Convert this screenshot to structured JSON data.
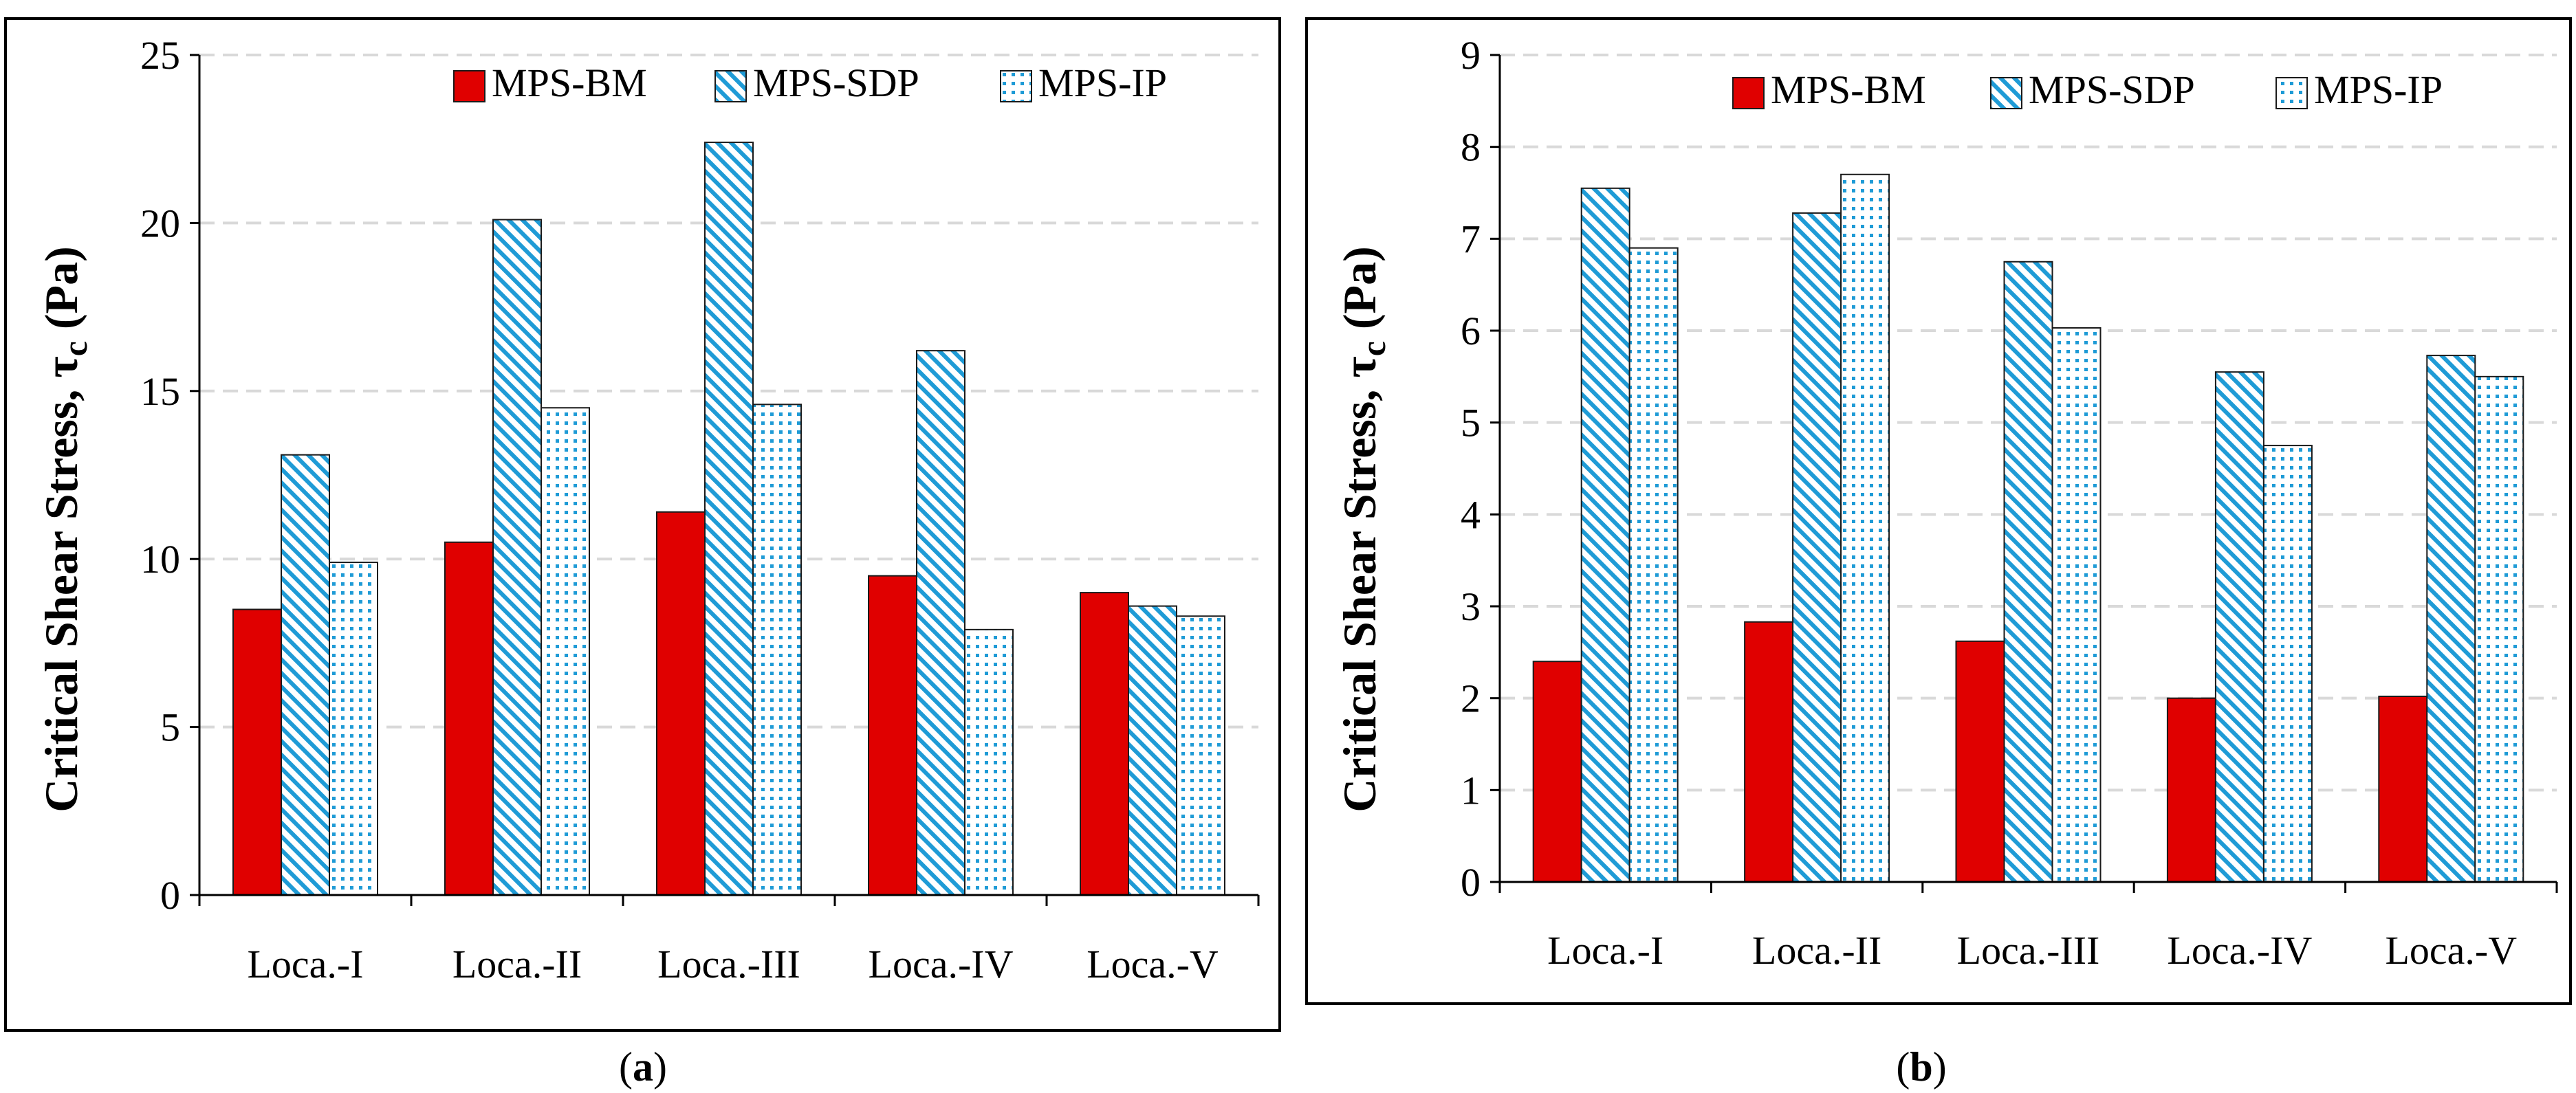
{
  "chart_data": [
    {
      "type": "bar",
      "panel": "a",
      "caption_open": "(",
      "caption_letter": "a",
      "caption_close": ")",
      "categories": [
        "Loca.-I",
        "Loca.-II",
        "Loca.-III",
        "Loca.-IV",
        "Loca.-V"
      ],
      "series": [
        {
          "name": "MPS-BM",
          "pattern": "solid",
          "values": [
            8.5,
            10.5,
            11.4,
            9.5,
            9.0
          ]
        },
        {
          "name": "MPS-SDP",
          "pattern": "diagonal",
          "values": [
            13.1,
            20.1,
            22.4,
            16.2,
            8.6
          ]
        },
        {
          "name": "MPS-IP",
          "pattern": "dotted",
          "values": [
            9.9,
            14.5,
            14.6,
            7.9,
            8.3
          ]
        }
      ],
      "ylabel_main": "Critical Shear Stress, τ",
      "ylabel_sub": "c",
      "ylabel_unit": " (Pa)",
      "xlabel": "",
      "ylim": [
        0,
        25
      ],
      "yticks": [
        "0",
        "5",
        "10",
        "15",
        "20",
        "25"
      ],
      "grid": true,
      "legend_position": "top"
    },
    {
      "type": "bar",
      "panel": "b",
      "caption_open": "(",
      "caption_letter": "b",
      "caption_close": ")",
      "categories": [
        "Loca.-I",
        "Loca.-II",
        "Loca.-III",
        "Loca.-IV",
        "Loca.-V"
      ],
      "series": [
        {
          "name": "MPS-BM",
          "pattern": "solid",
          "values": [
            2.4,
            2.83,
            2.62,
            2.0,
            2.02
          ]
        },
        {
          "name": "MPS-SDP",
          "pattern": "diagonal",
          "values": [
            7.55,
            7.28,
            6.75,
            5.55,
            5.73
          ]
        },
        {
          "name": "MPS-IP",
          "pattern": "dotted",
          "values": [
            6.9,
            7.7,
            6.03,
            4.75,
            5.5
          ]
        }
      ],
      "ylabel_main": "Critical Shear Stress, τ",
      "ylabel_sub": "c",
      "ylabel_unit": " (Pa)",
      "xlabel": "",
      "ylim": [
        0,
        9
      ],
      "yticks": [
        "0",
        "1",
        "2",
        "3",
        "4",
        "5",
        "6",
        "7",
        "8",
        "9"
      ],
      "grid": true,
      "legend_position": "top"
    }
  ],
  "colors": {
    "bm_fill": "#e00000",
    "hatch": "#1f9bd6",
    "grid": "#d9d9d9",
    "axis": "#000000"
  }
}
